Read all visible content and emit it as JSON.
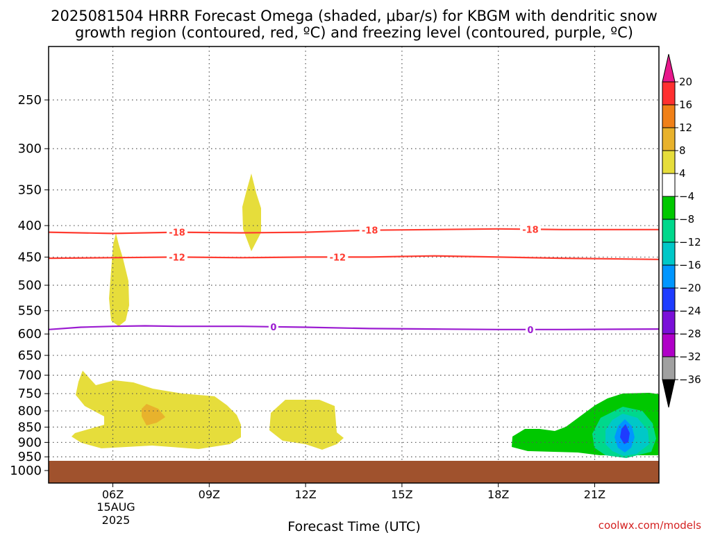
{
  "title_line1": "2025081504 HRRR Forecast Omega (shaded, μbar/s) for KBGM with dendritic snow",
  "title_line2": "growth region (contoured, red, ºC) and freezing level (contoured, purple, ºC)",
  "credit": "coolwx.com/models",
  "colors": {
    "grid": "#666666",
    "ground": "#a0522d",
    "dgz_contour": "#ff3b30",
    "freezing_contour": "#9b1bd1",
    "omega_4": "#e6dd3b",
    "omega_8": "#e8b22c",
    "omega_-4": "#00c800",
    "omega_-8": "#00d88c",
    "omega_-12": "#00c8c8",
    "omega_-16": "#0096ff",
    "omega_-20": "#1e3cff"
  },
  "colorbar": {
    "labels": [
      "20",
      "16",
      "12",
      "8",
      "4",
      "−4",
      "−8",
      "−12",
      "−16",
      "−20",
      "−24",
      "−28",
      "−32",
      "−36"
    ],
    "colors": [
      "#e8188c",
      "#ff3030",
      "#f08018",
      "#e8b22c",
      "#e6dd3b",
      "#ffffff",
      "#00c800",
      "#00d88c",
      "#00c8c8",
      "#0096ff",
      "#1e3cff",
      "#7a10d8",
      "#b000c8",
      "#a0a0a0",
      "#000000"
    ]
  },
  "chart_data": {
    "type": "heatmap",
    "title": "2025081504 HRRR Forecast Omega (shaded, μbar/s) for KBGM with dendritic snow growth region (contoured, red, ºC) and freezing level (contoured, purple, ºC)",
    "xlabel": "Forecast Time (UTC)",
    "ylabel": "",
    "x_ticks": [
      "06Z",
      "09Z",
      "12Z",
      "15Z",
      "18Z",
      "21Z"
    ],
    "x_tick_sub": [
      "15AUG",
      "2025"
    ],
    "x_range": [
      "04Z",
      "23Z"
    ],
    "y_ticks": [
      250,
      300,
      350,
      400,
      450,
      500,
      550,
      600,
      650,
      700,
      750,
      800,
      850,
      900,
      950,
      1000
    ],
    "y_range_hPa": [
      200,
      1025
    ],
    "y_scale": "log-pressure (inverted)",
    "grid": "dotted",
    "shading_levels": [
      -36,
      -32,
      -28,
      -24,
      -20,
      -16,
      -12,
      -8,
      -4,
      4,
      8,
      12,
      16,
      20
    ],
    "contours": [
      {
        "name": "-18",
        "color": "red",
        "label_positions_hour": [
          8,
          14,
          19
        ],
        "x_hour": [
          4,
          6,
          8,
          10,
          12,
          14,
          16,
          18,
          20,
          23
        ],
        "pressure_hPa": [
          410,
          412,
          410,
          411,
          410,
          407,
          406,
          405,
          406,
          406
        ]
      },
      {
        "name": "-12",
        "color": "red",
        "label_positions_hour": [
          8,
          13
        ],
        "x_hour": [
          4,
          6,
          8,
          10,
          12,
          14,
          16,
          18,
          20,
          23
        ],
        "pressure_hPa": [
          452,
          451,
          450,
          451,
          450,
          450,
          448,
          450,
          452,
          454
        ]
      },
      {
        "name": "0",
        "color": "purple",
        "label_positions_hour": [
          11,
          19
        ],
        "x_hour": [
          4,
          5,
          6,
          7,
          8,
          10,
          12,
          14,
          16,
          18,
          20,
          23
        ],
        "pressure_hPa": [
          590,
          585,
          583,
          582,
          583,
          583,
          585,
          588,
          589,
          590,
          590,
          589
        ]
      }
    ],
    "shaded_regions": [
      {
        "level": 4,
        "x_hour_range": [
          6.0,
          6.4
        ],
        "pressure_hPa_range": [
          410,
          585
        ]
      },
      {
        "level": 4,
        "x_hour_range": [
          9.7,
          10.3
        ],
        "pressure_hPa_range": [
          330,
          435
        ]
      },
      {
        "level": 4,
        "x_hour_range": [
          4.2,
          9.6
        ],
        "pressure_hPa_range": [
          695,
          920
        ]
      },
      {
        "level": 8,
        "x_hour_range": [
          6.6,
          7.3
        ],
        "pressure_hPa_range": [
          790,
          835
        ]
      },
      {
        "level": 4,
        "x_hour_range": [
          11.1,
          13.7
        ],
        "pressure_hPa_range": [
          775,
          905
        ]
      },
      {
        "level": -4,
        "x_hour_range": [
          17.6,
          23.0
        ],
        "pressure_hPa_range": [
          760,
          950
        ]
      },
      {
        "level": -8,
        "x_hour_range": [
          19.9,
          21.8
        ],
        "pressure_hPa_range": [
          800,
          940
        ]
      },
      {
        "level": -12,
        "x_hour_range": [
          20.4,
          21.6
        ],
        "pressure_hPa_range": [
          830,
          930
        ]
      },
      {
        "level": -16,
        "x_hour_range": [
          20.8,
          21.2
        ],
        "pressure_hPa_range": [
          855,
          910
        ]
      },
      {
        "level": -20,
        "x_hour_range": [
          20.9,
          21.1
        ],
        "pressure_hPa_range": [
          860,
          900
        ]
      }
    ]
  }
}
